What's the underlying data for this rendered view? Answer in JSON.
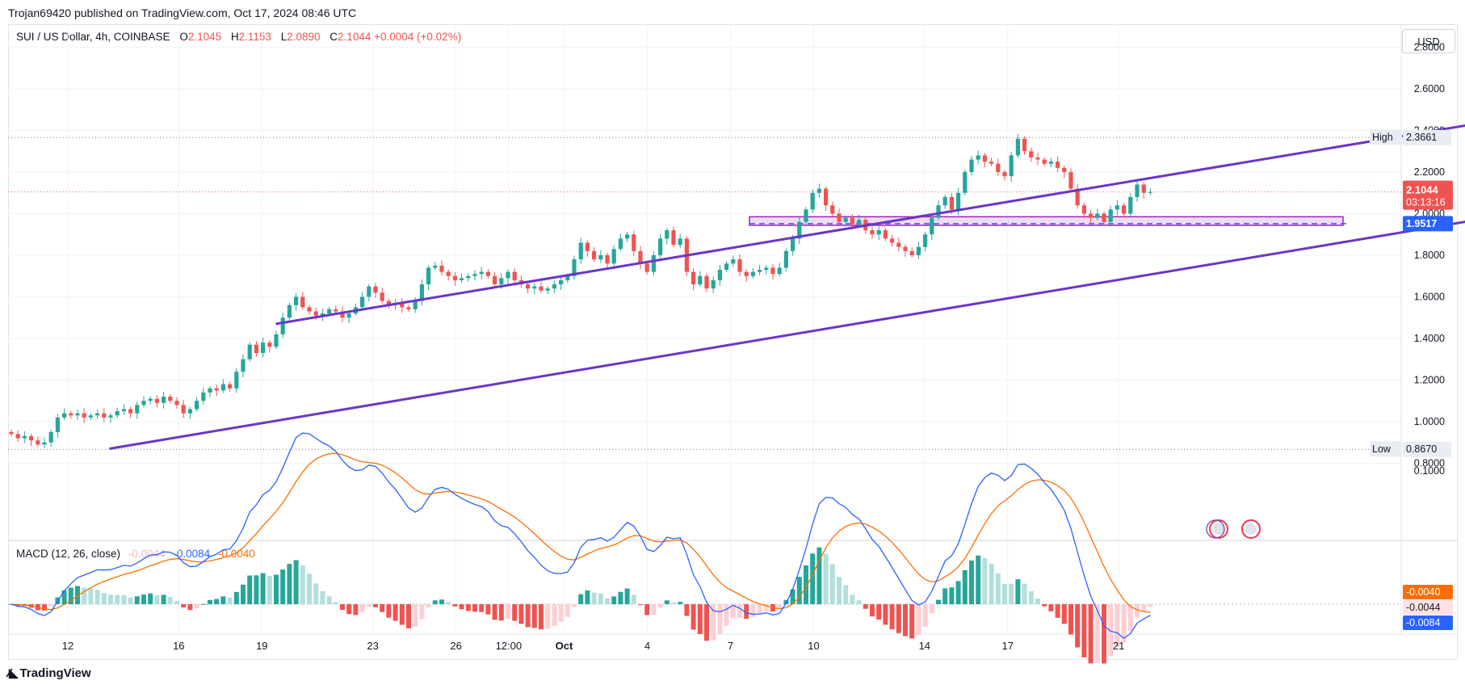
{
  "published_line": "Trojan69420 published on TradingView.com, Oct 17, 2024 08:46 UTC",
  "legend": {
    "symbol": "SUI / US Dollar, 4h, COINBASE",
    "open_key": "O",
    "open": "2.1045",
    "high_key": "H",
    "high": "2.1153",
    "low_key": "L",
    "low": "2.0890",
    "close_key": "C",
    "close": "2.1044",
    "change": "+0.0004 (+0.02%)"
  },
  "currency_button": "USD",
  "macd_legend": {
    "name": "MACD (12, 26, close)",
    "hist": "-0.0044",
    "macd": "-0.0084",
    "signal": "-0.0040"
  },
  "price_axis_labels": [
    "2.8000",
    "2.6000",
    "2.4000",
    "2.2000",
    "2.0000",
    "1.8000",
    "1.6000",
    "1.4000",
    "1.2000",
    "1.0000",
    "0.8000"
  ],
  "macd_axis_labels": [
    "0.1000"
  ],
  "markers": {
    "high_label": "High",
    "high_value": "2.3661",
    "low_label": "Low",
    "low_value": "0.8670",
    "last_price": "2.1044",
    "countdown": "03:13:16",
    "level_price": "1.9517",
    "macd_signal_value": "-0.0040",
    "macd_hist_value": "-0.0044",
    "macd_value": "-0.0084"
  },
  "x_axis_labels": [
    "12",
    "16",
    "19",
    "23",
    "26",
    "12:00",
    "Oct",
    "4",
    "7",
    "10",
    "14",
    "17",
    "21"
  ],
  "brand": "TradingView",
  "colors": {
    "up": "#26a69a",
    "down": "#ef5350",
    "channel": "#6a35c9",
    "zone_fill": "#e1bee7",
    "zone_border": "#9c27b0",
    "macd_line": "#2962ff",
    "signal_line": "#ff6d00",
    "level_dash": "#2962ff"
  },
  "chart_data": {
    "type": "candlestick",
    "title": "SUI / US Dollar, 4h, COINBASE",
    "ylim": [
      0.78,
      2.85
    ],
    "x_ticks": [
      "12",
      "16",
      "19",
      "23",
      "26",
      "12:00",
      "Oct",
      "4",
      "7",
      "10",
      "14",
      "17",
      "21"
    ],
    "series_close": [
      0.94,
      0.92,
      0.93,
      0.91,
      0.89,
      0.9,
      0.95,
      1.02,
      1.04,
      1.03,
      1.04,
      1.02,
      1.03,
      1.04,
      1.02,
      1.03,
      1.05,
      1.06,
      1.04,
      1.08,
      1.1,
      1.11,
      1.09,
      1.12,
      1.1,
      1.08,
      1.04,
      1.06,
      1.1,
      1.14,
      1.16,
      1.15,
      1.18,
      1.16,
      1.24,
      1.3,
      1.37,
      1.33,
      1.38,
      1.36,
      1.42,
      1.5,
      1.56,
      1.6,
      1.55,
      1.53,
      1.51,
      1.52,
      1.54,
      1.53,
      1.5,
      1.52,
      1.55,
      1.6,
      1.65,
      1.62,
      1.58,
      1.56,
      1.57,
      1.55,
      1.54,
      1.58,
      1.66,
      1.74,
      1.75,
      1.72,
      1.7,
      1.68,
      1.69,
      1.7,
      1.71,
      1.72,
      1.7,
      1.66,
      1.69,
      1.72,
      1.68,
      1.66,
      1.64,
      1.65,
      1.63,
      1.64,
      1.66,
      1.68,
      1.7,
      1.78,
      1.86,
      1.82,
      1.78,
      1.8,
      1.76,
      1.83,
      1.88,
      1.9,
      1.82,
      1.76,
      1.72,
      1.8,
      1.88,
      1.92,
      1.85,
      1.88,
      1.72,
      1.66,
      1.7,
      1.64,
      1.68,
      1.73,
      1.76,
      1.78,
      1.72,
      1.7,
      1.72,
      1.73,
      1.74,
      1.71,
      1.74,
      1.82,
      1.88,
      1.96,
      2.02,
      2.1,
      2.12,
      2.04,
      2.0,
      1.96,
      1.98,
      1.95,
      1.97,
      1.92,
      1.9,
      1.92,
      1.88,
      1.86,
      1.84,
      1.82,
      1.8,
      1.84,
      1.9,
      1.98,
      2.04,
      2.08,
      2.02,
      2.1,
      2.2,
      2.26,
      2.28,
      2.25,
      2.24,
      2.2,
      2.18,
      2.28,
      2.36,
      2.3,
      2.27,
      2.26,
      2.24,
      2.25,
      2.22,
      2.2,
      2.12,
      2.04,
      2.0,
      1.98,
      2.0,
      1.96,
      2.02,
      2.04,
      2.0,
      2.08,
      2.14,
      2.1,
      2.104
    ],
    "high": 2.3661,
    "low": 0.867,
    "last_price": 2.1044,
    "horizontal_level": 1.9517,
    "channel_upper": [
      [
        7.5,
        1.47
      ],
      [
        52.5,
        2.47
      ]
    ],
    "channel_lower": [
      [
        1.5,
        0.87
      ],
      [
        53.5,
        2.03
      ]
    ],
    "zone": {
      "from": 1.944,
      "to": 1.985
    },
    "macd": {
      "name": "MACD (12, 26, close)",
      "macd_last": -0.0084,
      "signal_last": -0.004,
      "hist_last": -0.0044,
      "ylim": [
        -0.09,
        0.13
      ]
    }
  }
}
